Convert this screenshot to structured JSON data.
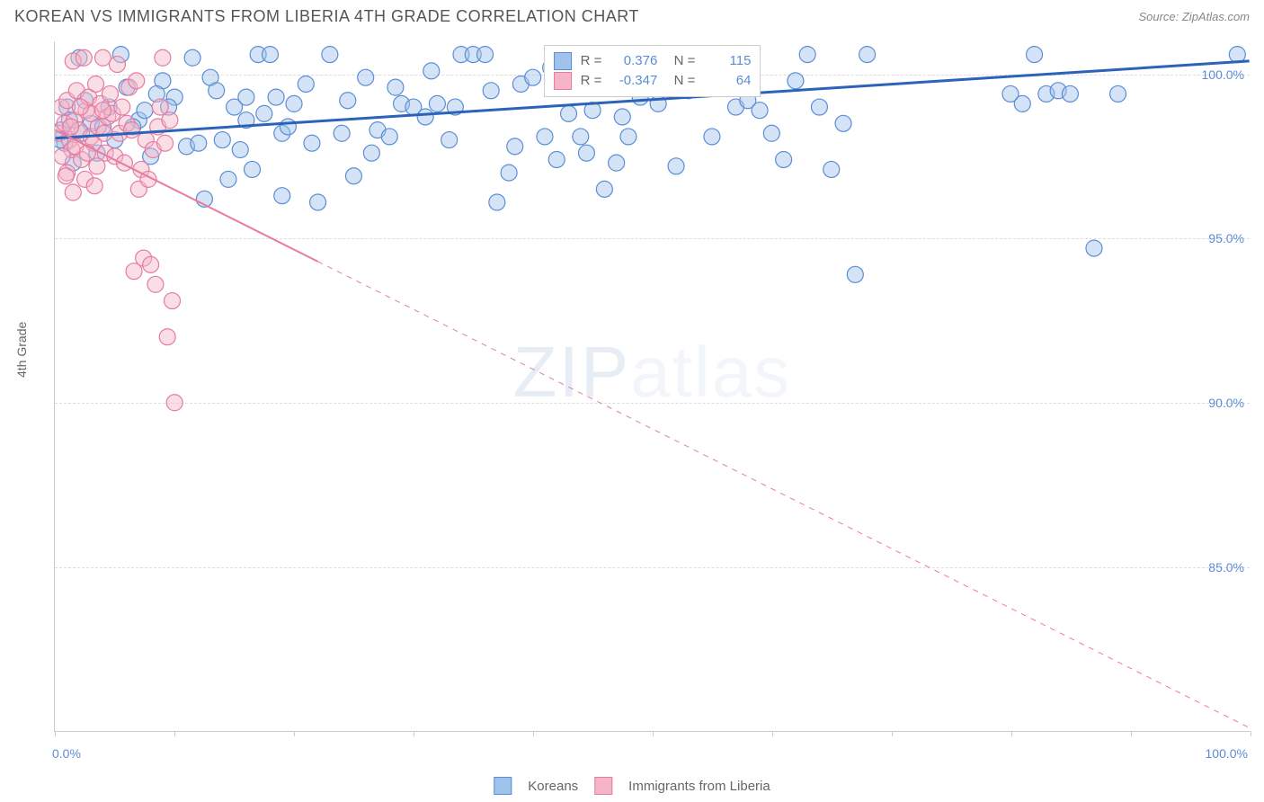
{
  "header": {
    "title": "KOREAN VS IMMIGRANTS FROM LIBERIA 4TH GRADE CORRELATION CHART",
    "source": "Source: ZipAtlas.com"
  },
  "chart": {
    "type": "scatter",
    "ylabel": "4th Grade",
    "xlim": [
      0,
      100
    ],
    "ylim": [
      80,
      101
    ],
    "ytick_values": [
      85.0,
      90.0,
      95.0,
      100.0
    ],
    "ytick_labels": [
      "85.0%",
      "90.0%",
      "95.0%",
      "100.0%"
    ],
    "xtick_values": [
      0,
      10,
      20,
      30,
      40,
      50,
      60,
      70,
      80,
      90,
      100
    ],
    "xtick_labels_shown": {
      "0": "0.0%",
      "100": "100.0%"
    },
    "background_color": "#ffffff",
    "grid_color": "#dddddd",
    "marker_radius": 9,
    "marker_opacity": 0.45,
    "series": [
      {
        "name": "Koreans",
        "color_fill": "#9fc3ea",
        "color_stroke": "#5b8dd6",
        "R": 0.376,
        "N": 115,
        "trend": {
          "x1": 0,
          "y1": 98.05,
          "x2": 100,
          "y2": 100.4,
          "color": "#2a63b8",
          "width": 3,
          "dash": "none"
        },
        "points": [
          [
            0.5,
            98.3
          ],
          [
            3,
            98.5
          ],
          [
            6,
            99.6
          ],
          [
            2,
            100.5
          ],
          [
            1.5,
            97.3
          ],
          [
            2.5,
            99.2
          ],
          [
            5,
            98.0
          ],
          [
            4,
            98.4
          ],
          [
            7,
            98.6
          ],
          [
            9,
            99.8
          ],
          [
            8,
            97.5
          ],
          [
            10,
            99.3
          ],
          [
            11,
            97.8
          ],
          [
            12,
            97.9
          ],
          [
            13,
            99.9
          ],
          [
            14,
            98.0
          ],
          [
            15,
            99.0
          ],
          [
            16,
            98.6
          ],
          [
            17,
            100.6
          ],
          [
            18,
            100.6
          ],
          [
            19,
            98.2
          ],
          [
            20,
            99.1
          ],
          [
            21,
            99.7
          ],
          [
            22,
            96.1
          ],
          [
            23,
            100.6
          ],
          [
            24,
            98.2
          ],
          [
            25,
            96.9
          ],
          [
            26,
            99.9
          ],
          [
            27,
            98.3
          ],
          [
            28,
            98.1
          ],
          [
            29,
            99.1
          ],
          [
            30,
            99.0
          ],
          [
            31,
            98.7
          ],
          [
            32,
            99.1
          ],
          [
            33,
            98.0
          ],
          [
            34,
            100.6
          ],
          [
            35,
            100.6
          ],
          [
            36,
            100.6
          ],
          [
            37,
            96.1
          ],
          [
            38,
            97.0
          ],
          [
            39,
            99.7
          ],
          [
            40,
            99.9
          ],
          [
            41,
            98.1
          ],
          [
            42,
            97.4
          ],
          [
            43,
            98.8
          ],
          [
            44,
            98.1
          ],
          [
            45,
            98.9
          ],
          [
            46,
            96.5
          ],
          [
            47,
            97.3
          ],
          [
            48,
            98.1
          ],
          [
            49,
            99.3
          ],
          [
            50,
            100.5
          ],
          [
            51,
            99.7
          ],
          [
            52,
            97.2
          ],
          [
            53,
            99.5
          ],
          [
            54,
            99.9
          ],
          [
            55,
            98.1
          ],
          [
            56,
            99.6
          ],
          [
            57,
            99.0
          ],
          [
            58,
            99.2
          ],
          [
            59,
            98.9
          ],
          [
            60,
            98.2
          ],
          [
            61,
            97.4
          ],
          [
            62,
            99.8
          ],
          [
            63,
            100.6
          ],
          [
            64,
            99.0
          ],
          [
            65,
            97.1
          ],
          [
            66,
            98.5
          ],
          [
            67,
            93.9
          ],
          [
            68,
            100.6
          ],
          [
            80,
            99.4
          ],
          [
            81,
            99.1
          ],
          [
            82,
            100.6
          ],
          [
            83,
            99.4
          ],
          [
            84,
            99.5
          ],
          [
            85,
            99.4
          ],
          [
            87,
            94.7
          ],
          [
            89,
            99.4
          ],
          [
            99,
            100.6
          ],
          [
            4.5,
            99.0
          ],
          [
            6.5,
            98.4
          ],
          [
            3.5,
            97.6
          ],
          [
            7.5,
            98.9
          ],
          [
            8.5,
            99.4
          ],
          [
            2.2,
            98.2
          ],
          [
            1,
            99.0
          ],
          [
            0.8,
            97.9
          ],
          [
            1.2,
            98.6
          ],
          [
            0.4,
            98.0
          ],
          [
            12.5,
            96.2
          ],
          [
            13.5,
            99.5
          ],
          [
            15.5,
            97.7
          ],
          [
            17.5,
            98.8
          ],
          [
            18.5,
            99.3
          ],
          [
            16.5,
            97.1
          ],
          [
            19.5,
            98.4
          ],
          [
            21.5,
            97.9
          ],
          [
            24.5,
            99.2
          ],
          [
            26.5,
            97.6
          ],
          [
            28.5,
            99.6
          ],
          [
            31.5,
            100.1
          ],
          [
            33.5,
            99.0
          ],
          [
            36.5,
            99.5
          ],
          [
            38.5,
            97.8
          ],
          [
            41.5,
            100.2
          ],
          [
            44.5,
            97.6
          ],
          [
            47.5,
            98.7
          ],
          [
            50.5,
            99.1
          ],
          [
            16,
            99.3
          ],
          [
            19,
            96.3
          ],
          [
            11.5,
            100.5
          ],
          [
            5.5,
            100.6
          ],
          [
            9.5,
            99.0
          ],
          [
            14.5,
            96.8
          ]
        ]
      },
      {
        "name": "Immigrants from Liberia",
        "color_fill": "#f4b5c7",
        "color_stroke": "#e77aa0",
        "R": -0.347,
        "N": 64,
        "trend": {
          "x1": 0,
          "y1": 98.3,
          "x2": 100,
          "y2": 80.1,
          "color": "#e77aa0",
          "width": 2,
          "dash": "none",
          "solid_until_x": 22
        },
        "points": [
          [
            0.3,
            98.2
          ],
          [
            0.5,
            99.0
          ],
          [
            0.8,
            98.5
          ],
          [
            1.0,
            99.2
          ],
          [
            1.2,
            98.0
          ],
          [
            1.4,
            97.7
          ],
          [
            1.5,
            100.4
          ],
          [
            1.6,
            98.6
          ],
          [
            1.8,
            99.5
          ],
          [
            2.0,
            98.3
          ],
          [
            2.2,
            97.4
          ],
          [
            2.4,
            100.5
          ],
          [
            2.6,
            98.9
          ],
          [
            2.8,
            99.3
          ],
          [
            3.0,
            98.1
          ],
          [
            3.2,
            97.9
          ],
          [
            3.4,
            99.7
          ],
          [
            3.6,
            98.4
          ],
          [
            3.8,
            99.1
          ],
          [
            4.0,
            100.5
          ],
          [
            4.2,
            97.6
          ],
          [
            4.4,
            98.7
          ],
          [
            4.6,
            99.4
          ],
          [
            4.8,
            98.8
          ],
          [
            5.0,
            97.5
          ],
          [
            5.2,
            100.3
          ],
          [
            5.4,
            98.2
          ],
          [
            5.6,
            99.0
          ],
          [
            5.8,
            97.3
          ],
          [
            6.0,
            98.5
          ],
          [
            6.2,
            99.6
          ],
          [
            6.4,
            98.3
          ],
          [
            6.6,
            94.0
          ],
          [
            6.8,
            99.8
          ],
          [
            7.0,
            96.5
          ],
          [
            7.2,
            97.1
          ],
          [
            7.4,
            94.4
          ],
          [
            7.6,
            98.0
          ],
          [
            7.8,
            96.8
          ],
          [
            8.0,
            94.2
          ],
          [
            8.2,
            97.7
          ],
          [
            8.4,
            93.6
          ],
          [
            8.6,
            98.4
          ],
          [
            8.8,
            99.0
          ],
          [
            9.0,
            100.5
          ],
          [
            9.2,
            97.9
          ],
          [
            9.4,
            92.0
          ],
          [
            9.6,
            98.6
          ],
          [
            9.8,
            93.1
          ],
          [
            10.0,
            90.0
          ],
          [
            1,
            97.0
          ],
          [
            1.5,
            96.4
          ],
          [
            2.5,
            96.8
          ],
          [
            3,
            98.8
          ],
          [
            3.5,
            97.2
          ],
          [
            4,
            98.9
          ],
          [
            0.6,
            97.5
          ],
          [
            0.9,
            96.9
          ],
          [
            1.3,
            98.4
          ],
          [
            1.7,
            97.8
          ],
          [
            2.1,
            99.0
          ],
          [
            2.7,
            97.6
          ],
          [
            3.3,
            96.6
          ],
          [
            4.1,
            98.2
          ]
        ]
      }
    ],
    "legend_bottom": [
      {
        "label": "Koreans",
        "fill": "#9fc3ea",
        "stroke": "#5b8dd6"
      },
      {
        "label": "Immigrants from Liberia",
        "fill": "#f4b5c7",
        "stroke": "#e77aa0"
      }
    ],
    "watermark": {
      "text_a": "ZIP",
      "text_b": "atlas"
    }
  }
}
